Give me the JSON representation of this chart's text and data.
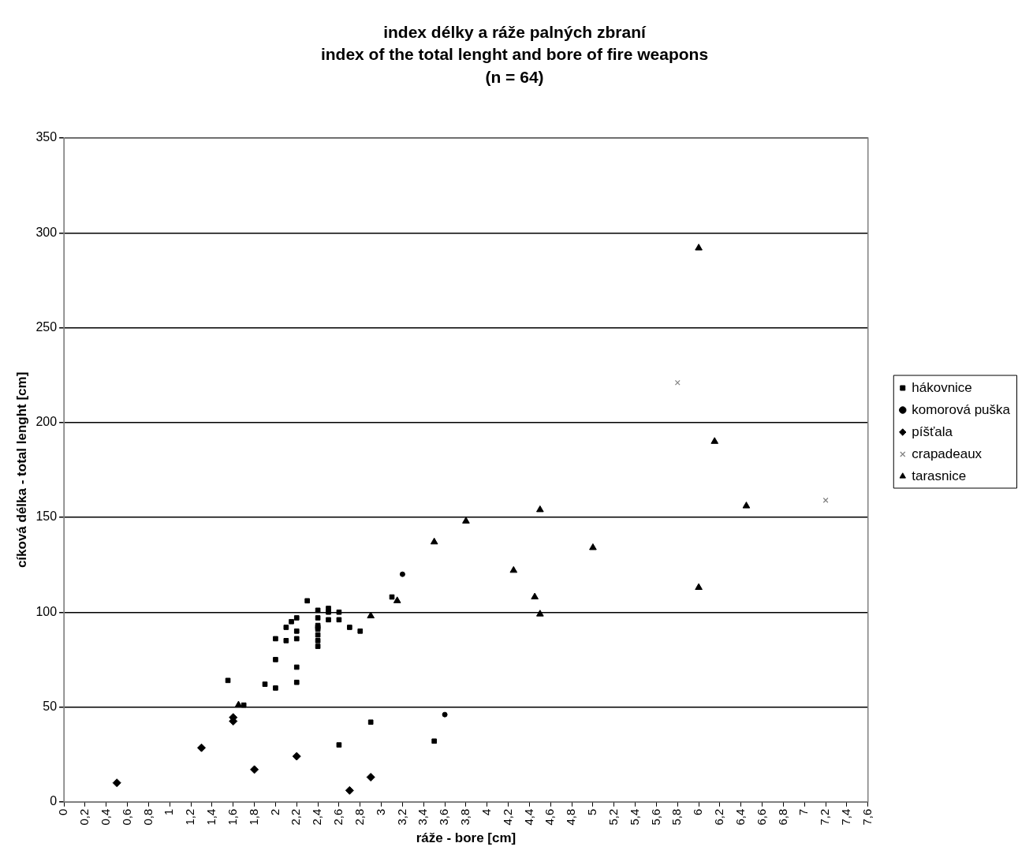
{
  "chart_data": {
    "type": "scatter",
    "title": "index délky a ráže palných zbraní",
    "subtitle": "index of the total lenght and bore of fire weapons",
    "annotations": [
      "(n = 64)"
    ],
    "xlabel": "ráže - bore [cm]",
    "ylabel": "cíková délka - total lenght [cm]",
    "xlim": [
      0,
      7.6
    ],
    "xticks": [
      0,
      {
        "value": 0.2,
        "label": "0,2"
      },
      {
        "value": 0.4,
        "label": "0,4"
      },
      {
        "value": 0.6,
        "label": "0,6"
      },
      {
        "value": 0.8,
        "label": "0,8"
      },
      1,
      {
        "value": 1.2,
        "label": "1,2"
      },
      {
        "value": 1.4,
        "label": "1,4"
      },
      {
        "value": 1.6,
        "label": "1,6"
      },
      {
        "value": 1.8,
        "label": "1,8"
      },
      2,
      {
        "value": 2.2,
        "label": "2,2"
      },
      {
        "value": 2.4,
        "label": "2,4"
      },
      {
        "value": 2.6,
        "label": "2,6"
      },
      {
        "value": 2.8,
        "label": "2,8"
      },
      3,
      {
        "value": 3.2,
        "label": "3,2"
      },
      {
        "value": 3.4,
        "label": "3,4"
      },
      {
        "value": 3.6,
        "label": "3,6"
      },
      {
        "value": 3.8,
        "label": "3,8"
      },
      4,
      {
        "value": 4.2,
        "label": "4,2"
      },
      {
        "value": 4.4,
        "label": "4,4"
      },
      {
        "value": 4.6,
        "label": "4,6"
      },
      {
        "value": 4.8,
        "label": "4,8"
      },
      5,
      {
        "value": 5.2,
        "label": "5,2"
      },
      {
        "value": 5.4,
        "label": "5,4"
      },
      {
        "value": 5.6,
        "label": "5,6"
      },
      {
        "value": 5.8,
        "label": "5,8"
      },
      6,
      {
        "value": 6.2,
        "label": "6,2"
      },
      {
        "value": 6.4,
        "label": "6,4"
      },
      {
        "value": 6.6,
        "label": "6,6"
      },
      {
        "value": 6.8,
        "label": "6,8"
      },
      7,
      {
        "value": 7.2,
        "label": "7,2"
      },
      {
        "value": 7.4,
        "label": "7,4"
      },
      {
        "value": 7.6,
        "label": "7,6"
      }
    ],
    "ylim": [
      0,
      350
    ],
    "yticks": [
      0,
      50,
      100,
      150,
      200,
      250,
      300,
      350
    ],
    "grid": "y",
    "legend": "right",
    "series": [
      {
        "name": "hákovnice",
        "color": "#000000",
        "marker": "square",
        "x": [
          2.3,
          2.4,
          2.5,
          2.5,
          2.6,
          2.4,
          2.5,
          2.6,
          2.2,
          2.15,
          2.1,
          2.2,
          2.4,
          2.4,
          2.4,
          2.4,
          2.4,
          2.4,
          2.0,
          2.1,
          2.2,
          2.7,
          2.8,
          2.0,
          2.2,
          1.55,
          1.9,
          2.0,
          2.2,
          1.7,
          2.9,
          2.6,
          3.5,
          3.1
        ],
        "values": [
          106,
          101,
          102,
          100,
          100,
          97,
          96,
          96,
          97,
          95,
          92,
          90,
          93,
          92,
          91,
          88,
          85,
          82,
          86,
          85,
          86,
          92,
          90,
          75,
          71,
          64,
          62,
          60,
          63,
          51,
          42,
          30,
          32,
          108
        ]
      },
      {
        "name": "komorová puška",
        "color": "#000000",
        "marker": "circle",
        "x": [
          3.2,
          3.6
        ],
        "values": [
          120,
          46
        ]
      },
      {
        "name": "píšťala",
        "color": "#000000",
        "marker": "diamond",
        "x": [
          0.5,
          1.3,
          1.6,
          1.6,
          1.8,
          2.2,
          2.7,
          2.9
        ],
        "values": [
          10,
          28.5,
          44.5,
          42.5,
          17,
          24,
          6,
          13
        ]
      },
      {
        "name": "crapadeaux",
        "color": "#808080",
        "marker": "cross",
        "x": [
          5.8,
          7.2
        ],
        "values": [
          221,
          159
        ]
      },
      {
        "name": "tarasnice",
        "color": "#000000",
        "marker": "triangle",
        "x": [
          6.0,
          6.15,
          6.45,
          6.0,
          4.5,
          3.8,
          3.5,
          4.25,
          4.45,
          4.5,
          5.0,
          3.15,
          2.9,
          1.65
        ],
        "values": [
          292,
          190,
          156,
          113,
          154,
          148,
          137,
          122,
          108,
          99,
          134,
          106,
          98,
          51
        ]
      }
    ]
  }
}
